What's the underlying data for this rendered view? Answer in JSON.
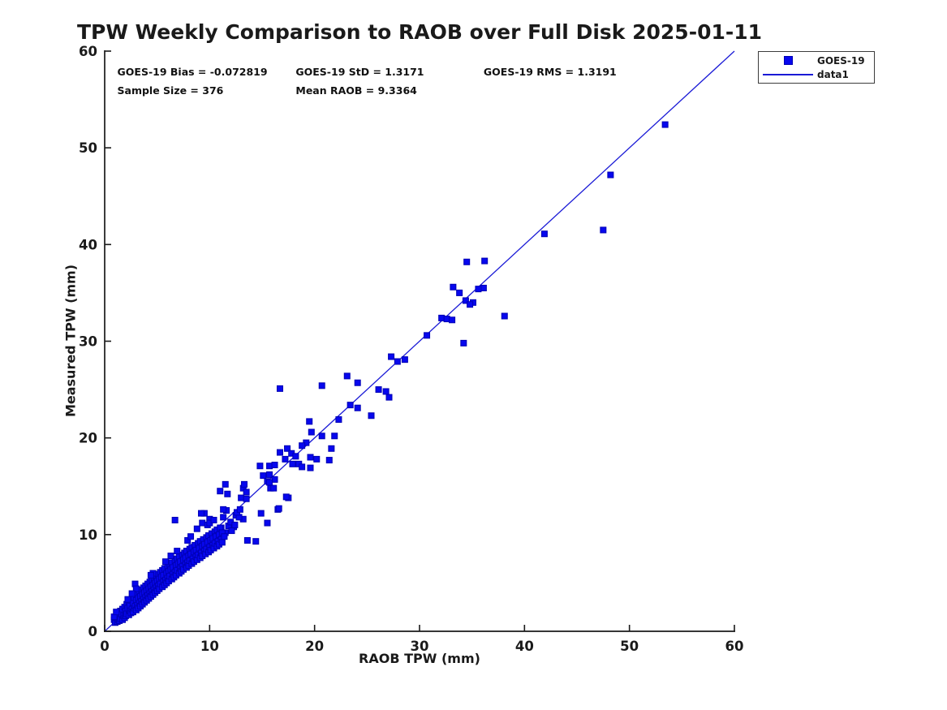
{
  "chart_data": {
    "type": "scatter",
    "title": "TPW Weekly Comparison to RAOB over Full Disk 2025-01-11",
    "xlabel": "RAOB TPW (mm)",
    "ylabel": "Measured TPW (mm)",
    "xlim": [
      0,
      60
    ],
    "ylim": [
      0,
      60
    ],
    "x_ticks": [
      0,
      10,
      20,
      30,
      40,
      50,
      60
    ],
    "y_ticks": [
      0,
      10,
      20,
      30,
      40,
      50,
      60
    ],
    "grid": false,
    "legend_position": "top-right-outside",
    "annotations": [
      {
        "text": "GOES-19 Bias = -0.072819",
        "x": 1.2,
        "y": 57.8
      },
      {
        "text": "GOES-19 StD = 1.3171",
        "x": 18.2,
        "y": 57.8
      },
      {
        "text": "GOES-19 RMS = 1.3191",
        "x": 36.1,
        "y": 57.8
      },
      {
        "text": "Sample Size = 376",
        "x": 1.2,
        "y": 55.9
      },
      {
        "text": "Mean RAOB = 9.3364",
        "x": 18.2,
        "y": 55.9
      }
    ],
    "identity_line": {
      "name": "data1",
      "color": "#1a1ad6",
      "from": [
        0,
        0
      ],
      "to": [
        60,
        60
      ]
    },
    "series": [
      {
        "name": "GOES-19",
        "marker": "square",
        "color": "#0707ee",
        "edge_color": "#0000b4",
        "points": [
          [
            53.4,
            52.4
          ],
          [
            48.2,
            47.2
          ],
          [
            47.5,
            41.5
          ],
          [
            41.9,
            41.1
          ],
          [
            38.1,
            32.6
          ],
          [
            36.2,
            38.3
          ],
          [
            34.5,
            38.2
          ],
          [
            36.1,
            35.5
          ],
          [
            35.6,
            35.4
          ],
          [
            33.2,
            35.6
          ],
          [
            33.8,
            35.0
          ],
          [
            34.4,
            34.2
          ],
          [
            35.1,
            34.0
          ],
          [
            34.8,
            33.8
          ],
          [
            32.1,
            32.4
          ],
          [
            32.6,
            32.3
          ],
          [
            33.1,
            32.2
          ],
          [
            34.2,
            29.8
          ],
          [
            30.7,
            30.6
          ],
          [
            27.3,
            28.4
          ],
          [
            27.9,
            27.9
          ],
          [
            28.6,
            28.1
          ],
          [
            23.1,
            26.4
          ],
          [
            24.1,
            25.7
          ],
          [
            26.1,
            25.0
          ],
          [
            26.8,
            24.8
          ],
          [
            27.1,
            24.2
          ],
          [
            20.7,
            25.4
          ],
          [
            16.7,
            25.1
          ],
          [
            23.4,
            23.4
          ],
          [
            24.1,
            23.1
          ],
          [
            25.4,
            22.3
          ],
          [
            22.3,
            21.9
          ],
          [
            19.5,
            21.7
          ],
          [
            19.7,
            20.6
          ],
          [
            20.7,
            20.2
          ],
          [
            21.9,
            20.2
          ],
          [
            19.2,
            19.5
          ],
          [
            18.8,
            19.2
          ],
          [
            21.6,
            18.9
          ],
          [
            17.4,
            18.9
          ],
          [
            17.8,
            18.4
          ],
          [
            16.7,
            18.5
          ],
          [
            18.2,
            18.1
          ],
          [
            19.6,
            18.0
          ],
          [
            20.2,
            17.8
          ],
          [
            21.4,
            17.7
          ],
          [
            17.2,
            17.8
          ],
          [
            17.9,
            17.3
          ],
          [
            18.5,
            17.3
          ],
          [
            18.8,
            17.0
          ],
          [
            14.8,
            17.1
          ],
          [
            15.7,
            17.1
          ],
          [
            16.2,
            17.2
          ],
          [
            19.6,
            16.9
          ],
          [
            15.1,
            16.1
          ],
          [
            15.7,
            16.2
          ],
          [
            16.2,
            15.7
          ],
          [
            15.5,
            15.5
          ],
          [
            15.8,
            14.8
          ],
          [
            16.1,
            14.8
          ],
          [
            15.7,
            15.4
          ],
          [
            13.2,
            14.8
          ],
          [
            13.5,
            14.4
          ],
          [
            13.0,
            13.8
          ],
          [
            17.5,
            13.8
          ],
          [
            17.3,
            13.9
          ],
          [
            16.5,
            12.6
          ],
          [
            16.6,
            12.7
          ],
          [
            14.9,
            12.2
          ],
          [
            15.5,
            11.2
          ],
          [
            13.3,
            15.2
          ],
          [
            13.5,
            13.7
          ],
          [
            13.2,
            11.6
          ],
          [
            13.6,
            9.4
          ],
          [
            14.4,
            9.3
          ],
          [
            11.5,
            15.2
          ],
          [
            11.0,
            14.5
          ],
          [
            11.7,
            14.2
          ],
          [
            12.5,
            12.0
          ],
          [
            11.6,
            12.5
          ],
          [
            11.1,
            10.7
          ],
          [
            11.5,
            10.2
          ],
          [
            10.0,
            11.6
          ],
          [
            9.5,
            12.2
          ],
          [
            9.3,
            11.2
          ],
          [
            9.2,
            12.2
          ],
          [
            11.3,
            12.6
          ],
          [
            11.3,
            11.8
          ],
          [
            12.8,
            11.8
          ],
          [
            12.3,
            10.8
          ],
          [
            6.7,
            11.5
          ],
          [
            0.9,
            1.2
          ],
          [
            1.0,
            0.9
          ],
          [
            1.1,
            1.4
          ],
          [
            1.2,
            1.0
          ],
          [
            1.2,
            1.9
          ],
          [
            1.3,
            1.2
          ],
          [
            1.4,
            1.7
          ],
          [
            1.4,
            1.1
          ],
          [
            1.5,
            2.1
          ],
          [
            1.5,
            1.3
          ],
          [
            1.6,
            1.8
          ],
          [
            1.7,
            1.2
          ],
          [
            1.7,
            2.3
          ],
          [
            1.8,
            1.6
          ],
          [
            1.9,
            2.5
          ],
          [
            1.9,
            1.4
          ],
          [
            2.0,
            2.1
          ],
          [
            2.0,
            1.6
          ],
          [
            2.1,
            2.8
          ],
          [
            2.1,
            1.8
          ],
          [
            2.2,
            2.4
          ],
          [
            2.3,
            1.7
          ],
          [
            2.3,
            3.0
          ],
          [
            2.4,
            2.1
          ],
          [
            2.4,
            2.7
          ],
          [
            2.5,
            1.9
          ],
          [
            2.5,
            3.2
          ],
          [
            2.6,
            2.3
          ],
          [
            2.7,
            2.9
          ],
          [
            2.7,
            2.0
          ],
          [
            2.8,
            3.5
          ],
          [
            2.8,
            2.4
          ],
          [
            2.9,
            4.9
          ],
          [
            2.9,
            2.6
          ],
          [
            3.0,
            3.2
          ],
          [
            3.0,
            2.2
          ],
          [
            3.1,
            3.8
          ],
          [
            3.1,
            2.7
          ],
          [
            3.2,
            3.4
          ],
          [
            3.2,
            2.4
          ],
          [
            3.3,
            4.1
          ],
          [
            3.3,
            2.9
          ],
          [
            3.4,
            3.6
          ],
          [
            3.4,
            2.6
          ],
          [
            3.5,
            4.3
          ],
          [
            3.5,
            3.1
          ],
          [
            3.6,
            3.8
          ],
          [
            3.6,
            2.8
          ],
          [
            3.7,
            4.5
          ],
          [
            3.7,
            3.3
          ],
          [
            3.8,
            4.0
          ],
          [
            3.8,
            3.0
          ],
          [
            3.9,
            4.7
          ],
          [
            3.9,
            3.5
          ],
          [
            4.0,
            4.2
          ],
          [
            4.0,
            3.2
          ],
          [
            4.1,
            4.9
          ],
          [
            4.1,
            3.7
          ],
          [
            4.2,
            4.4
          ],
          [
            4.2,
            3.4
          ],
          [
            4.3,
            5.1
          ],
          [
            4.3,
            3.9
          ],
          [
            4.4,
            4.6
          ],
          [
            4.4,
            3.6
          ],
          [
            4.5,
            5.3
          ],
          [
            4.5,
            4.1
          ],
          [
            4.6,
            4.8
          ],
          [
            4.6,
            3.8
          ],
          [
            4.7,
            5.5
          ],
          [
            4.7,
            4.3
          ],
          [
            4.8,
            5.0
          ],
          [
            4.8,
            4.0
          ],
          [
            4.9,
            5.7
          ],
          [
            4.9,
            4.5
          ],
          [
            5.0,
            5.2
          ],
          [
            5.0,
            4.2
          ],
          [
            5.1,
            5.9
          ],
          [
            5.1,
            4.7
          ],
          [
            5.2,
            5.4
          ],
          [
            5.2,
            4.4
          ],
          [
            5.3,
            6.1
          ],
          [
            5.3,
            4.9
          ],
          [
            5.4,
            5.6
          ],
          [
            5.5,
            4.6
          ],
          [
            5.5,
            6.3
          ],
          [
            5.6,
            5.1
          ],
          [
            5.6,
            5.8
          ],
          [
            5.7,
            4.8
          ],
          [
            5.7,
            6.5
          ],
          [
            5.8,
            5.3
          ],
          [
            5.9,
            6.0
          ],
          [
            5.9,
            5.0
          ],
          [
            6.0,
            6.7
          ],
          [
            6.0,
            5.5
          ],
          [
            6.1,
            6.2
          ],
          [
            6.1,
            5.2
          ],
          [
            6.2,
            6.9
          ],
          [
            6.2,
            5.7
          ],
          [
            6.3,
            6.4
          ],
          [
            6.4,
            5.4
          ],
          [
            6.4,
            7.1
          ],
          [
            6.5,
            5.9
          ],
          [
            6.5,
            6.6
          ],
          [
            6.6,
            5.6
          ],
          [
            6.7,
            7.3
          ],
          [
            6.7,
            6.1
          ],
          [
            6.8,
            6.8
          ],
          [
            6.8,
            5.8
          ],
          [
            6.9,
            7.5
          ],
          [
            6.9,
            6.3
          ],
          [
            7.0,
            7.0
          ],
          [
            7.1,
            6.0
          ],
          [
            7.1,
            7.7
          ],
          [
            7.2,
            6.5
          ],
          [
            7.2,
            7.2
          ],
          [
            7.3,
            6.2
          ],
          [
            7.4,
            7.9
          ],
          [
            7.4,
            6.7
          ],
          [
            7.5,
            7.4
          ],
          [
            7.5,
            6.4
          ],
          [
            7.6,
            8.1
          ],
          [
            7.7,
            6.9
          ],
          [
            7.7,
            7.6
          ],
          [
            7.8,
            6.6
          ],
          [
            7.8,
            8.3
          ],
          [
            7.9,
            7.1
          ],
          [
            8.0,
            7.8
          ],
          [
            8.0,
            6.8
          ],
          [
            8.1,
            8.5
          ],
          [
            8.1,
            7.3
          ],
          [
            8.2,
            8.0
          ],
          [
            8.3,
            7.0
          ],
          [
            8.3,
            8.7
          ],
          [
            8.4,
            7.5
          ],
          [
            8.5,
            8.2
          ],
          [
            8.5,
            7.2
          ],
          [
            8.6,
            8.9
          ],
          [
            8.7,
            7.7
          ],
          [
            8.7,
            8.4
          ],
          [
            8.8,
            7.4
          ],
          [
            8.9,
            9.1
          ],
          [
            8.9,
            7.9
          ],
          [
            9.0,
            8.6
          ],
          [
            9.1,
            7.6
          ],
          [
            9.1,
            9.3
          ],
          [
            9.2,
            8.1
          ],
          [
            9.3,
            8.8
          ],
          [
            9.3,
            7.8
          ],
          [
            9.4,
            9.5
          ],
          [
            9.5,
            8.3
          ],
          [
            9.5,
            9.0
          ],
          [
            9.6,
            8.0
          ],
          [
            9.7,
            9.7
          ],
          [
            9.7,
            8.5
          ],
          [
            9.8,
            9.2
          ],
          [
            9.9,
            8.2
          ],
          [
            9.9,
            9.9
          ],
          [
            10.0,
            8.7
          ],
          [
            10.1,
            9.4
          ],
          [
            10.1,
            8.4
          ],
          [
            10.2,
            10.1
          ],
          [
            10.3,
            8.9
          ],
          [
            10.3,
            9.6
          ],
          [
            10.4,
            8.6
          ],
          [
            10.5,
            10.3
          ],
          [
            10.5,
            9.1
          ],
          [
            10.6,
            9.8
          ],
          [
            10.7,
            8.8
          ],
          [
            10.7,
            10.5
          ],
          [
            10.8,
            9.3
          ],
          [
            10.9,
            10.0
          ],
          [
            10.9,
            9.0
          ],
          [
            11.0,
            10.7
          ],
          [
            11.1,
            9.5
          ],
          [
            11.2,
            10.2
          ],
          [
            11.2,
            9.2
          ],
          [
            11.4,
            9.8
          ],
          [
            11.8,
            10.9
          ],
          [
            12.0,
            11.3
          ],
          [
            12.1,
            10.4
          ],
          [
            12.4,
            11.0
          ],
          [
            12.6,
            12.3
          ],
          [
            12.9,
            12.6
          ],
          [
            0.9,
            1.5
          ],
          [
            1.1,
            2.0
          ],
          [
            2.2,
            3.3
          ],
          [
            4.6,
            6.0
          ],
          [
            6.3,
            7.8
          ],
          [
            8.8,
            10.6
          ],
          [
            9.8,
            11.0
          ],
          [
            5.8,
            7.2
          ],
          [
            3.0,
            4.4
          ],
          [
            2.6,
            3.9
          ],
          [
            7.9,
            9.4
          ],
          [
            8.2,
            9.8
          ],
          [
            6.9,
            8.3
          ],
          [
            4.4,
            5.8
          ],
          [
            10.0,
            11.2
          ],
          [
            10.4,
            11.5
          ]
        ]
      }
    ]
  },
  "legend": {
    "items": [
      {
        "label": "GOES-19",
        "icon": "square-marker"
      },
      {
        "label": "data1",
        "icon": "line"
      }
    ]
  },
  "colors": {
    "marker_fill": "#0707ee",
    "marker_edge": "#0000b4",
    "line": "#1a1ad6",
    "axis": "#1a1a1a"
  }
}
